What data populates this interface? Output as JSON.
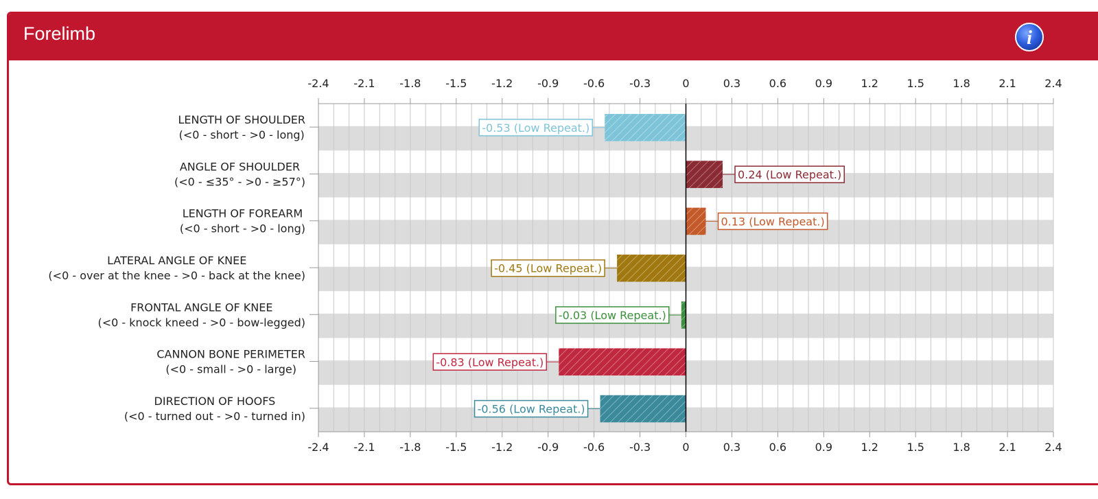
{
  "panel": {
    "title": "Forelimb",
    "info_icon": "info-icon",
    "accent": "#c0172f"
  },
  "chart_data": {
    "type": "bar",
    "orientation": "horizontal",
    "xlim": [
      -2.4,
      2.4
    ],
    "tick_values": [
      -2.4,
      -2.1,
      -1.8,
      -1.5,
      -1.2,
      -0.9,
      -0.6,
      -0.3,
      0,
      0.3,
      0.6,
      0.9,
      1.2,
      1.5,
      1.8,
      2.1,
      2.4
    ],
    "tick_labels": [
      "-2.4",
      "-2.1",
      "-1.8",
      "-1.5",
      "-1.2",
      "-0.9",
      "-0.6",
      "-0.3",
      "0",
      "0.3",
      "0.6",
      "0.9",
      "1.2",
      "1.5",
      "1.8",
      "2.1",
      "2.4"
    ],
    "axes_position": "top and bottom",
    "grid": true,
    "bar_pattern": "diagonal-hatch",
    "categories": [
      {
        "line1": "LENGTH OF SHOULDER",
        "line2": "(<0 - short - >0 - long)",
        "value": -0.53,
        "label": "-0.53 (Low Repeat.)",
        "color": "#7ec4d9"
      },
      {
        "line1": "ANGLE OF SHOULDER",
        "line2": "(<0 - ≤35° - >0 - ≥57°)",
        "value": 0.24,
        "label": "0.24 (Low Repeat.)",
        "color": "#8a2a33"
      },
      {
        "line1": "LENGTH OF FOREARM",
        "line2": "(<0 - short - >0 - long)",
        "value": 0.13,
        "label": "0.13 (Low Repeat.)",
        "color": "#c45a2a"
      },
      {
        "line1": "LATERAL ANGLE OF KNEE",
        "line2": "(<0 - over at the knee - >0 - back at the knee)",
        "value": -0.45,
        "label": "-0.45 (Low Repeat.)",
        "color": "#a0780f"
      },
      {
        "line1": "FRONTAL ANGLE OF KNEE",
        "line2": "(<0 - knock kneed - >0 - bow-legged)",
        "value": -0.03,
        "label": "-0.03 (Low Repeat.)",
        "color": "#3c8f3c"
      },
      {
        "line1": "CANNON BONE PERIMETER",
        "line2": "(<0 - small - >0 - large)",
        "value": -0.83,
        "label": "-0.83 (Low Repeat.)",
        "color": "#c0283f"
      },
      {
        "line1": "DIRECTION OF HOOFS",
        "line2": "(<0 - turned out - >0 - turned in)",
        "value": -0.56,
        "label": "-0.56 (Low Repeat.)",
        "color": "#3a8a9c"
      }
    ]
  }
}
